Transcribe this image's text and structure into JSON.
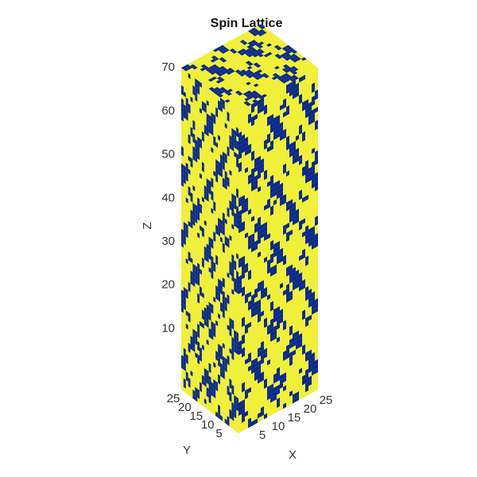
{
  "chart_data": {
    "type": "voxel",
    "title": "Spin Lattice",
    "xlabel": "X",
    "ylabel": "Y",
    "zlabel": "Z",
    "xlim": [
      0,
      25
    ],
    "ylim": [
      0,
      25
    ],
    "zlim": [
      -4,
      70
    ],
    "xticks": [
      5,
      10,
      15,
      20,
      25
    ],
    "yticks": [
      5,
      10,
      15,
      20,
      25
    ],
    "zticks": [
      10,
      20,
      30,
      40,
      50,
      60,
      70
    ],
    "colors": [
      "#f0f03a",
      "#0b2a8c"
    ]
  }
}
